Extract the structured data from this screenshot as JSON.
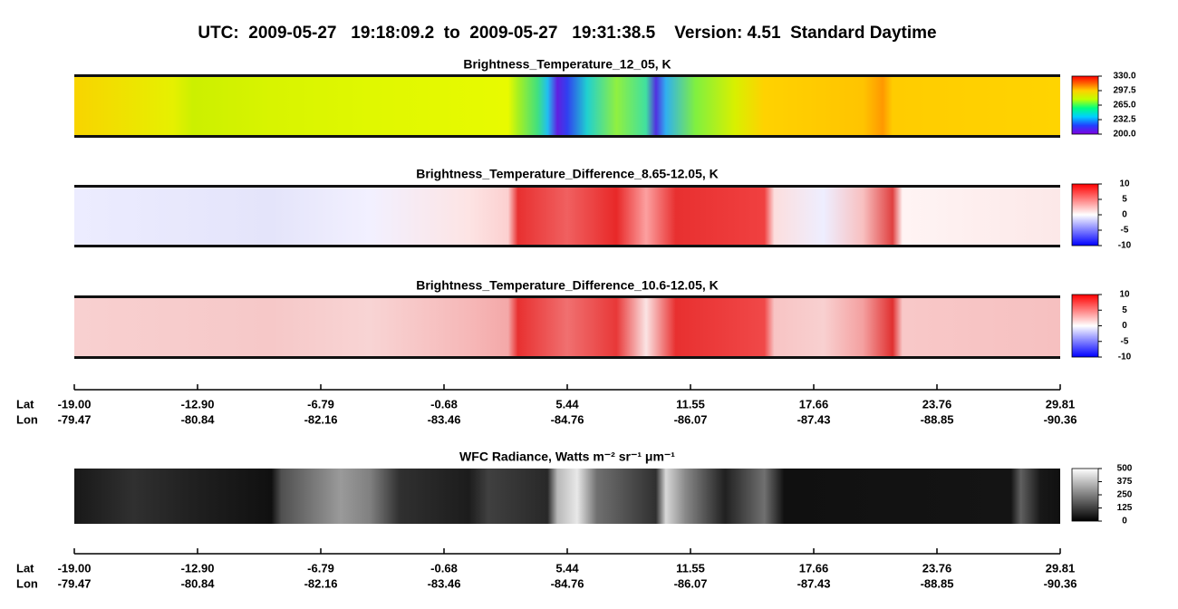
{
  "title": "UTC:  2009-05-27   19:18:09.2  to  2009-05-27   19:31:38.5    Version: 4.51  Standard Daytime",
  "panels": [
    {
      "title": "Brightness_Temperature_12_05, K",
      "colorbar": {
        "range": [
          200,
          330
        ],
        "ticks": [
          {
            "value": 200,
            "label": "200.0"
          },
          {
            "value": 232.5,
            "label": "232.5"
          },
          {
            "value": 265,
            "label": "265.0"
          },
          {
            "value": 297.5,
            "label": "297.5"
          },
          {
            "value": 330,
            "label": "330.0"
          }
        ]
      }
    },
    {
      "title": "Brightness_Temperature_Difference_8.65-12.05, K",
      "colorbar": {
        "range": [
          -10,
          10
        ],
        "ticks": [
          -10,
          -5,
          0,
          5,
          10
        ]
      }
    },
    {
      "title": "Brightness_Temperature_Difference_10.6-12.05, K",
      "colorbar": {
        "range": [
          -10,
          10
        ],
        "ticks": [
          -10,
          -5,
          0,
          5,
          10
        ]
      }
    },
    {
      "title": "WFC Radiance, Watts m⁻² sr⁻¹ μm⁻¹",
      "colorbar": {
        "range": [
          0,
          500
        ],
        "ticks": [
          0,
          125,
          250,
          375,
          500
        ]
      }
    }
  ],
  "axes": [
    {
      "lat_label": "Lat",
      "lon_label": "Lon",
      "lat": [
        "-19.00",
        "-12.90",
        "-6.79",
        "-0.68",
        "5.44",
        "11.55",
        "17.66",
        "23.76",
        "29.81"
      ],
      "lon": [
        "-79.47",
        "-80.84",
        "-82.16",
        "-83.46",
        "-84.76",
        "-86.07",
        "-87.43",
        "-88.85",
        "-90.36"
      ]
    },
    {
      "lat_label": "Lat",
      "lon_label": "Lon",
      "lat": [
        "-19.00",
        "-12.90",
        "-6.79",
        "-0.68",
        "5.44",
        "11.55",
        "17.66",
        "23.76",
        "29.81"
      ],
      "lon": [
        "-79.47",
        "-80.84",
        "-82.16",
        "-83.46",
        "-84.76",
        "-86.07",
        "-87.43",
        "-88.85",
        "-90.36"
      ]
    }
  ]
}
